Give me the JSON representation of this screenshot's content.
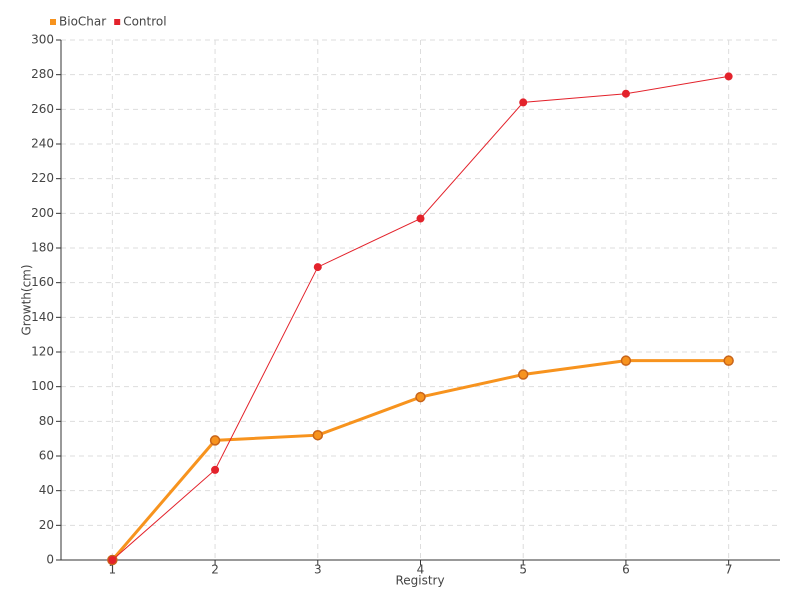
{
  "chart_data": {
    "type": "line",
    "x_label": "Registry",
    "y_label": "Growth(cm)",
    "categories": [
      "1",
      "2",
      "3",
      "4",
      "5",
      "6",
      "7"
    ],
    "series": [
      {
        "name": "BioChar",
        "color": "#f7931e",
        "values": [
          0,
          69,
          72,
          94,
          107,
          115,
          115
        ]
      },
      {
        "name": "Control",
        "color": "#e3222b",
        "values": [
          0,
          52,
          169,
          197,
          264,
          269,
          279
        ]
      }
    ],
    "ylim": [
      0,
      300
    ],
    "yticks": [
      0,
      20,
      40,
      60,
      80,
      100,
      120,
      140,
      160,
      180,
      200,
      220,
      240,
      260,
      280,
      300
    ],
    "grid": true,
    "legend": "top-left"
  }
}
